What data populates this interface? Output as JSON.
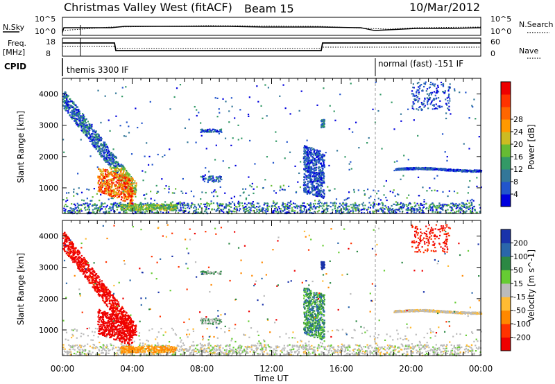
{
  "header": {
    "station": "Christmas Valley West (fitACF)",
    "beam": "Beam 15",
    "date": "10/Mar/2012"
  },
  "strip_labels": {
    "nsky": "N.Sky",
    "nsky_top": "10^5",
    "nsky_bottom": "10^0",
    "nsearch": "N.Search",
    "nsearch_top": "10^5",
    "nsearch_bottom": "10^0",
    "freq_label": "Freq.",
    "freq_unit": "[MHz]",
    "freq_top": "18",
    "freq_bottom": "8",
    "nave_label": "Nave",
    "nave_top": "60",
    "nave_bottom": "0",
    "cpid": "CPID",
    "cpid_mode1": "themis 3300 IF",
    "cpid_mode2": "normal (fast) -151 IF"
  },
  "chart_data": [
    {
      "type": "heatmap",
      "title": "",
      "xlabel": "",
      "ylabel": "Slant Range [km]",
      "x_ticks_hours": [
        0,
        4,
        8,
        12,
        16,
        20,
        24
      ],
      "y_ticks": [
        1000,
        2000,
        3000,
        4000
      ],
      "ylim": [
        180,
        4500
      ],
      "xlim_hours": [
        0,
        24
      ],
      "colorbar": {
        "label": "Power [dB]",
        "ticks": [
          "4",
          "8",
          "12",
          "16",
          "20",
          "24",
          "28"
        ],
        "colors": [
          "#0000dd",
          "#2255cc",
          "#337799",
          "#339966",
          "#66bb33",
          "#ccbb22",
          "#ff9900",
          "#ff6600",
          "#ff3300",
          "#ee0000"
        ]
      },
      "scatter_regions": [
        {
          "t_start": 0.0,
          "t_end": 4.0,
          "r_start": 3900,
          "r_end": 900,
          "level": "low-high"
        },
        {
          "t_start": 2.0,
          "t_end": 4.0,
          "r_start": 1700,
          "r_end": 900,
          "level": "high"
        },
        {
          "t_start": 13.8,
          "t_end": 15.0,
          "r_start": 2400,
          "r_end": 900,
          "level": "mid"
        },
        {
          "t_start": 19.0,
          "t_end": 24.0,
          "r_start": 1600,
          "r_end": 1700,
          "level": "low"
        }
      ],
      "mode_change_hour": 18.0
    },
    {
      "type": "heatmap",
      "title": "",
      "xlabel": "Time UT",
      "ylabel": "Slant Range [km]",
      "x_ticks": [
        "00:00",
        "04:00",
        "08:00",
        "12:00",
        "16:00",
        "20:00",
        "00:00"
      ],
      "y_ticks": [
        1000,
        2000,
        3000,
        4000
      ],
      "ylim": [
        180,
        4500
      ],
      "xlim_hours": [
        0,
        24
      ],
      "colorbar": {
        "label": "Velocity [m s^-1]",
        "ticks": [
          "200",
          "100",
          "50",
          "15",
          "-15",
          "-50",
          "-100",
          "-200"
        ],
        "colors": [
          "#1a33aa",
          "#2a66aa",
          "#2c8844",
          "#66cc33",
          "#bbbbbb",
          "#ffbb33",
          "#ff8800",
          "#ff3300",
          "#ee0000"
        ]
      },
      "scatter_regions": [
        {
          "t_start": 0.0,
          "t_end": 4.0,
          "r_start": 3900,
          "r_end": 900,
          "level": "negative"
        },
        {
          "t_start": 13.8,
          "t_end": 15.0,
          "r_start": 2400,
          "r_end": 900,
          "level": "positive"
        },
        {
          "t_start": 19.0,
          "t_end": 24.0,
          "r_start": 1600,
          "r_end": 1700,
          "level": "near-zero"
        }
      ],
      "mode_change_hour": 18.0
    }
  ]
}
